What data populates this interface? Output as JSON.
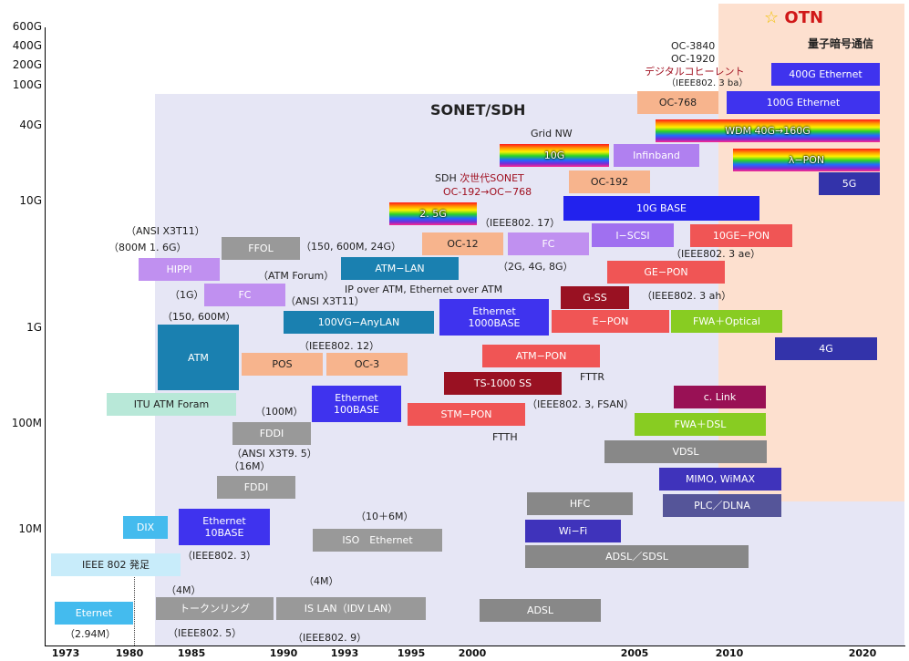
{
  "regions": {
    "sonet": {
      "label": "SONET/SDH",
      "color": "#e6e6f5"
    },
    "otn": {
      "label": "OTN",
      "icon": "star-icon",
      "color": "#fde0cf",
      "sub": "量子暗号通信"
    }
  },
  "y_axis": [
    "600G",
    "400G",
    "200G",
    "100G",
    "40G",
    "10G",
    "1G",
    "100M",
    "10M"
  ],
  "x_axis": [
    "1973",
    "1980",
    "1985",
    "1990",
    "1993",
    "1995",
    "2000",
    "2005",
    "2010",
    "2020"
  ],
  "boxes": [
    {
      "id": "otn-400g",
      "text": "400G Ethernet",
      "color": "#3f33ee"
    },
    {
      "id": "otn-100g",
      "text": "100G Ethernet",
      "color": "#3f33ee"
    },
    {
      "id": "oc768",
      "text": "OC-768",
      "color": "#f7b48d",
      "dark": true
    },
    {
      "id": "wdm",
      "text": "WDM 40G→160G",
      "rainbow": true
    },
    {
      "id": "10g",
      "text": "10G",
      "rainbow": true
    },
    {
      "id": "infiniband",
      "text": "Infinband",
      "color": "#b080f0"
    },
    {
      "id": "lambda-pon",
      "text": "λ−PON",
      "rainbow": true
    },
    {
      "id": "oc192",
      "text": "OC-192",
      "color": "#f7b48d",
      "dark": true
    },
    {
      "id": "5g",
      "text": "5G",
      "color": "#3333aa"
    },
    {
      "id": "10gbase",
      "text": "10G BASE",
      "color": "#2222ee"
    },
    {
      "id": "2-5g",
      "text": "2. 5G",
      "rainbow": true
    },
    {
      "id": "iscsi",
      "text": "I−SCSI",
      "color": "#a070f0"
    },
    {
      "id": "10ge-pon",
      "text": "10GE−PON",
      "color": "#f05555"
    },
    {
      "id": "ffol",
      "text": "FFOL",
      "color": "#999999"
    },
    {
      "id": "oc12",
      "text": "OC-12",
      "color": "#f7b48d",
      "dark": true
    },
    {
      "id": "fc-upper",
      "text": "FC",
      "color": "#c090f0"
    },
    {
      "id": "hippi",
      "text": "HIPPI",
      "color": "#c090f0"
    },
    {
      "id": "atm-lan",
      "text": "ATM−LAN",
      "color": "#1a80b0"
    },
    {
      "id": "ge-pon",
      "text": "GE−PON",
      "color": "#f05555"
    },
    {
      "id": "fc-lower",
      "text": "FC",
      "color": "#c090f0"
    },
    {
      "id": "gss",
      "text": "G-SS",
      "color": "#991122"
    },
    {
      "id": "100vg",
      "text": "100VG−AnyLAN",
      "color": "#1a80b0"
    },
    {
      "id": "eth1000",
      "text": "Ethernet\n1000BASE",
      "color": "#3f33ee"
    },
    {
      "id": "epon",
      "text": "E−PON",
      "color": "#f05555"
    },
    {
      "id": "fwa-optical",
      "text": "FWA＋Optical",
      "color": "#88cc22"
    },
    {
      "id": "atm",
      "text": "ATM",
      "color": "#1a80b0"
    },
    {
      "id": "atm-pon",
      "text": "ATM−PON",
      "color": "#f05555"
    },
    {
      "id": "4g",
      "text": "4G",
      "color": "#3333aa"
    },
    {
      "id": "pos",
      "text": "POS",
      "color": "#f7b48d",
      "dark": true
    },
    {
      "id": "oc3",
      "text": "OC-3",
      "color": "#f7b48d",
      "dark": true
    },
    {
      "id": "ts1000",
      "text": "TS-1000 SS",
      "color": "#991122"
    },
    {
      "id": "itu-atm",
      "text": "ITU ATM Foram",
      "color": "#b8e8d8",
      "dark": true
    },
    {
      "id": "eth100",
      "text": "Ethernet\n100BASE",
      "color": "#3f33ee"
    },
    {
      "id": "clink",
      "text": "c. Link",
      "color": "#991155"
    },
    {
      "id": "stm-pon",
      "text": "STM−PON",
      "color": "#f05555"
    },
    {
      "id": "fddi-upper",
      "text": "FDDI",
      "color": "#999999"
    },
    {
      "id": "fwa-dsl",
      "text": "FWA＋DSL",
      "color": "#88cc22"
    },
    {
      "id": "vdsl",
      "text": "VDSL",
      "color": "#888888"
    },
    {
      "id": "fddi-lower",
      "text": "FDDI",
      "color": "#999999"
    },
    {
      "id": "mimo",
      "text": "MIMO, WiMAX",
      "color": "#3f33bb"
    },
    {
      "id": "hfc",
      "text": "HFC",
      "color": "#888888"
    },
    {
      "id": "plc",
      "text": "PLC／DLNA",
      "color": "#555599"
    },
    {
      "id": "dix",
      "text": "DIX",
      "color": "#44bbee"
    },
    {
      "id": "eth10",
      "text": "Ethernet\n10BASE",
      "color": "#3f33ee"
    },
    {
      "id": "wifi",
      "text": "Wi−Fi",
      "color": "#3f33bb"
    },
    {
      "id": "iso-eth",
      "text": "ISO　Ethernet",
      "color": "#999999"
    },
    {
      "id": "adsl-sdsl",
      "text": "ADSL／SDSL",
      "color": "#888888"
    },
    {
      "id": "ieee802",
      "text": "IEEE 802 発足",
      "color": "#c8ecfa",
      "dark": true
    },
    {
      "id": "eternet",
      "text": "Eternet",
      "color": "#44bbee"
    },
    {
      "id": "token",
      "text": "トークンリング",
      "color": "#999999"
    },
    {
      "id": "islan",
      "text": "IS LAN（IDV LAN）",
      "color": "#999999"
    },
    {
      "id": "adsl",
      "text": "ADSL",
      "color": "#888888"
    }
  ],
  "labels": [
    {
      "id": "oc3840",
      "text": "OC-3840"
    },
    {
      "id": "oc1920",
      "text": "OC-1920"
    },
    {
      "id": "digital-coherent",
      "text": "デジタルコヒーレント",
      "red": true
    },
    {
      "id": "ieee8023ba",
      "text": "（IEEE802. 3 ba）"
    },
    {
      "id": "grid-nw",
      "text": "Grid  NW"
    },
    {
      "id": "sdh-next",
      "text": "SDH  次世代SONET",
      "red_part": "次世代SONET"
    },
    {
      "id": "oc192-768",
      "text": "OC-192→OC−768",
      "red": true
    },
    {
      "id": "ieee80217",
      "text": "（IEEE802. 17）"
    },
    {
      "id": "ansi-x3t11-a",
      "text": "（ANSI X3T11）"
    },
    {
      "id": "800m",
      "text": "（800M  1. 6G）"
    },
    {
      "id": "150-600-24",
      "text": "（150, 600M, 24G）"
    },
    {
      "id": "ieee8023ae",
      "text": "（IEEE802. 3 ae）"
    },
    {
      "id": "2g48g",
      "text": "（2G, 4G, 8G）"
    },
    {
      "id": "atm-forum",
      "text": "（ATM Forum）"
    },
    {
      "id": "ip-over",
      "text": "IP over ATM, Ethernet over ATM"
    },
    {
      "id": "1g-paren",
      "text": "（1G）"
    },
    {
      "id": "ansi-x3t11-b",
      "text": "（ANSI X3T11）"
    },
    {
      "id": "ieee8023ah",
      "text": "（IEEE802. 3 ah）"
    },
    {
      "id": "150-600",
      "text": "（150, 600M）"
    },
    {
      "id": "ieee80212",
      "text": "（IEEE802. 12）"
    },
    {
      "id": "fttr",
      "text": "FTTR"
    },
    {
      "id": "100m-paren",
      "text": "（100M）"
    },
    {
      "id": "ieee8023fsan",
      "text": "（IEEE802. 3, FSAN）"
    },
    {
      "id": "ftth",
      "text": "FTTH"
    },
    {
      "id": "ansi-x3t95",
      "text": "（ANSI X3T9. 5）"
    },
    {
      "id": "16m",
      "text": "（16M）"
    },
    {
      "id": "10-6m",
      "text": "（10＋6M）"
    },
    {
      "id": "ieee8023",
      "text": "（IEEE802. 3）"
    },
    {
      "id": "4m-a",
      "text": "（4M）"
    },
    {
      "id": "4m-b",
      "text": "（4M）"
    },
    {
      "id": "294m",
      "text": "（2.94M）"
    },
    {
      "id": "ieee8025",
      "text": "（IEEE802. 5）"
    },
    {
      "id": "ieee8029",
      "text": "（IEEE802. 9）"
    }
  ]
}
